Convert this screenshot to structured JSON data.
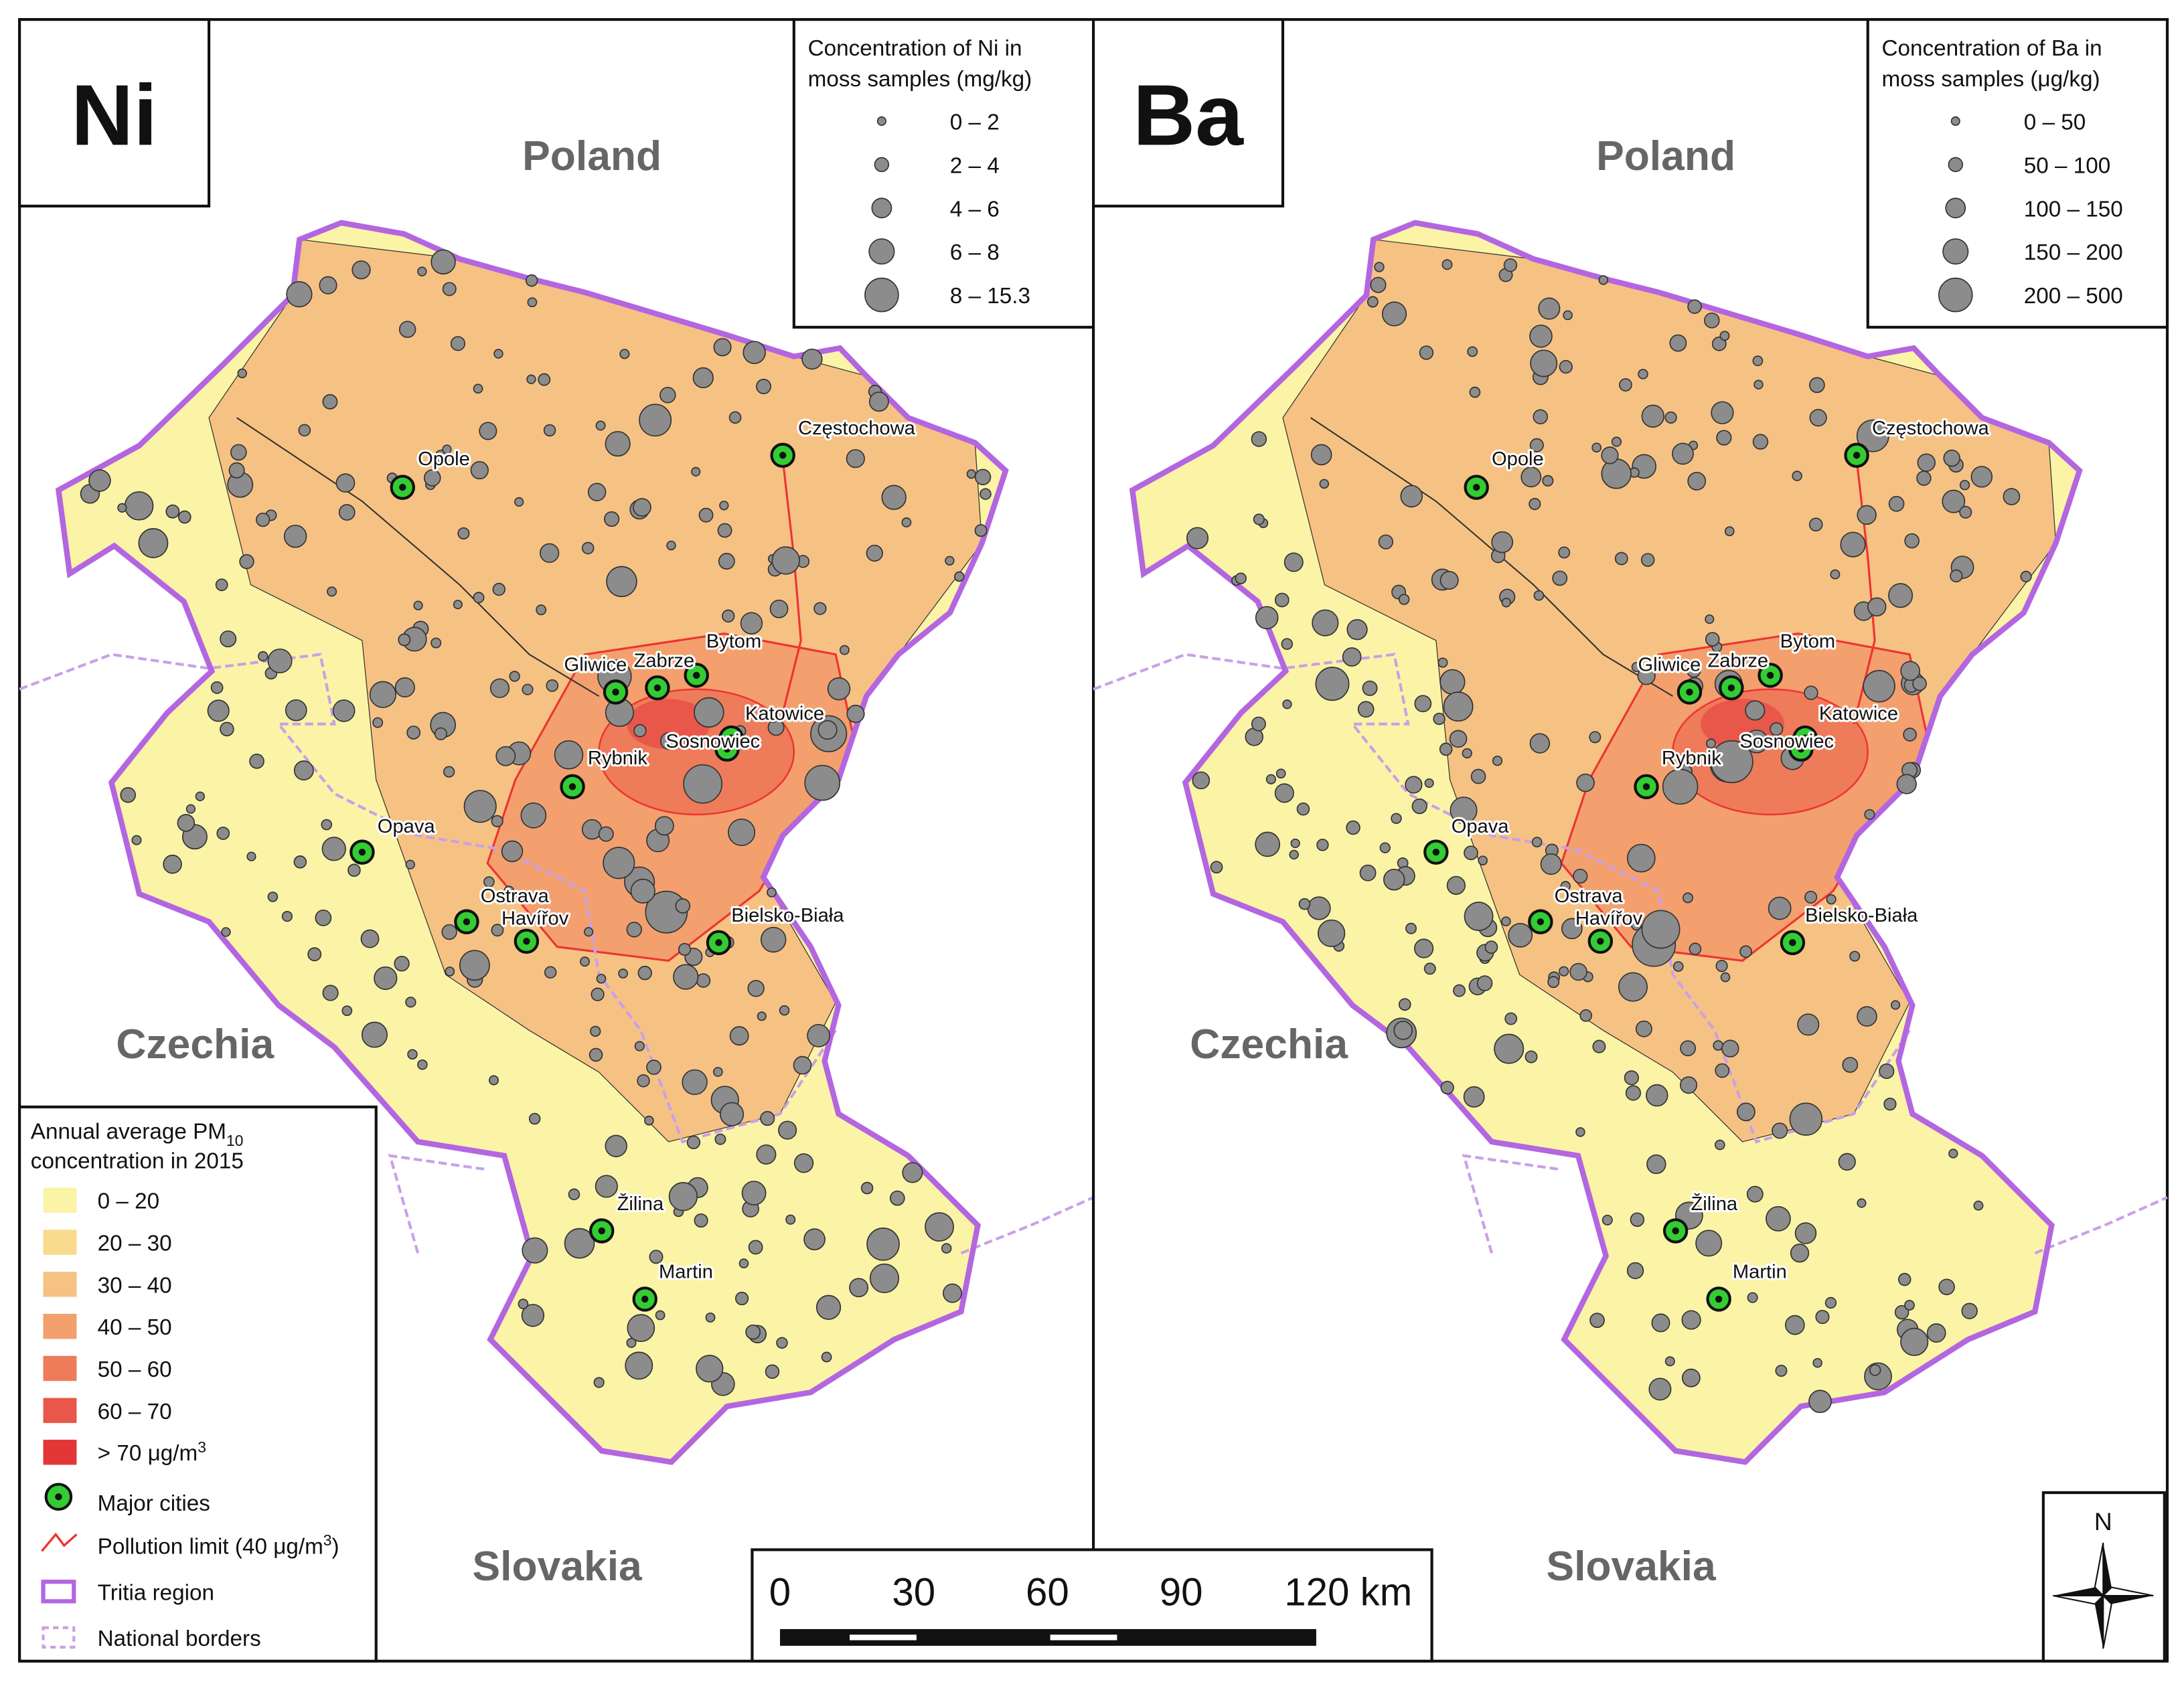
{
  "panels": [
    {
      "element": "Ni",
      "countries": [
        "Poland",
        "Czechia",
        "Slovakia"
      ],
      "legend_title": [
        "Concentration of Ni in",
        "moss samples (mg/kg)"
      ],
      "legend_classes": [
        "0 – 2",
        "2 – 4",
        "4 – 6",
        "6 – 8",
        "8 – 15.3"
      ],
      "cities": [
        "Opole",
        "Częstochowa",
        "Bytom",
        "Gliwice",
        "Zabrze",
        "Katowice",
        "Sosnowiec",
        "Rybnik",
        "Opava",
        "Ostrava",
        "Havířov",
        "Bielsko-Biała",
        "Žilina",
        "Martin"
      ]
    },
    {
      "element": "Ba",
      "countries": [
        "Poland",
        "Czechia",
        "Slovakia"
      ],
      "legend_title": [
        "Concentration of Ba in",
        "moss samples (μg/kg)"
      ],
      "legend_classes": [
        "0 – 50",
        "50 – 100",
        "100 – 150",
        "150 – 200",
        "200 – 500"
      ],
      "cities": [
        "Opole",
        "Częstochowa",
        "Bytom",
        "Gliwice",
        "Zabrze",
        "Katowice",
        "Sosnowiec",
        "Rybnik",
        "Opava",
        "Ostrava",
        "Havířov",
        "Bielsko-Biała",
        "Žilina",
        "Martin"
      ]
    }
  ],
  "pm_legend": {
    "title_start": "Annual average PM",
    "title_sub": "10",
    "title_line2": "concentration in 2015",
    "classes": [
      "0 – 20",
      "20 – 30",
      "30 – 40",
      "40 – 50",
      "50 – 60",
      "60 – 70"
    ],
    "last_class": "> 70 μg/m",
    "last_class_sup": "3",
    "major_cities": "Major cities",
    "pollution_limit": "Pollution limit (40 μg/m",
    "pollution_limit_sup": "3",
    "pollution_limit_end": ")",
    "tritia": "Tritia region",
    "borders": "National borders"
  },
  "scale_bar": [
    "0",
    "30",
    "60",
    "90",
    "120 km"
  ],
  "north": "N"
}
